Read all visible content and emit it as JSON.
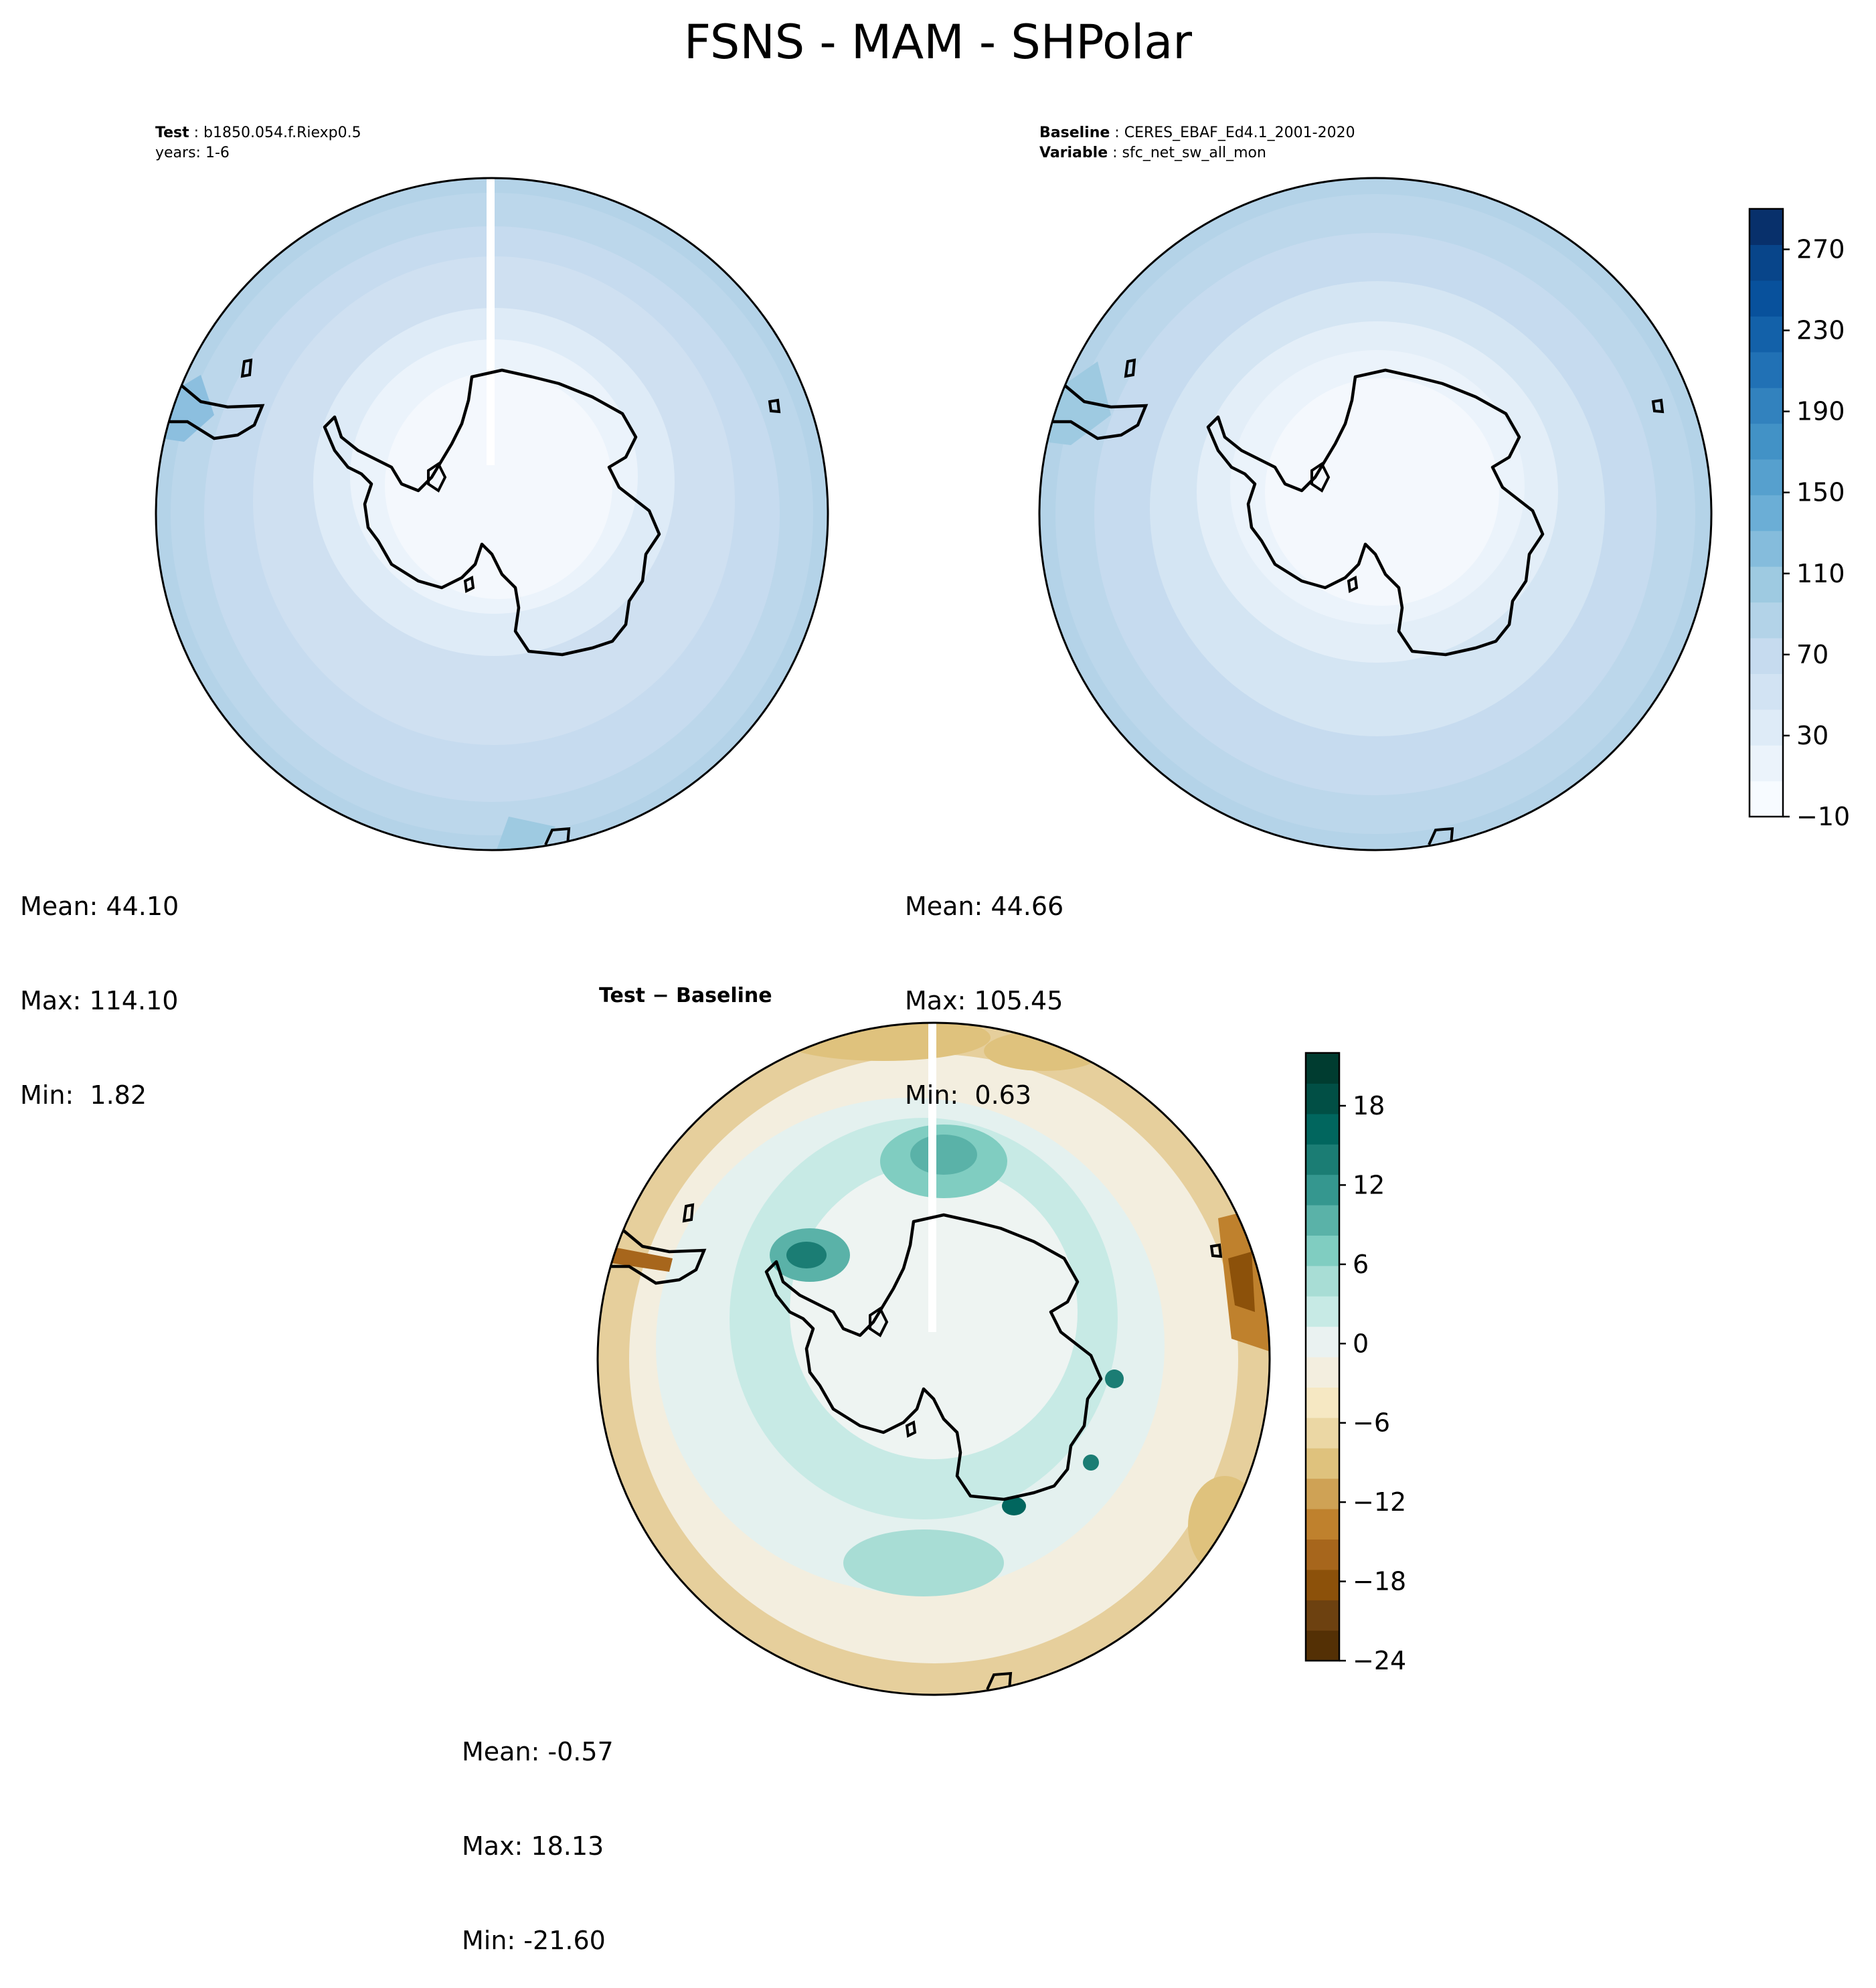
{
  "title": "FSNS - MAM - SHPolar",
  "panels": {
    "test": {
      "label_key": "Test",
      "label_value": "b1850.054.f.Riexp0.5",
      "years": "years: 1-6",
      "mean": "Mean: 44.10",
      "max": "Max: 114.10",
      "min": "Min:  1.82"
    },
    "baseline": {
      "label_key": "Baseline",
      "label_value": "CERES_EBAF_Ed4.1_2001-2020",
      "var_key": "Variable",
      "var_value": "sfc_net_sw_all_mon",
      "mean": "Mean: 44.66",
      "max": "Max: 105.45",
      "min": "Min:  0.63"
    },
    "diff": {
      "title": "Test − Baseline",
      "mean": "Mean: -0.57",
      "max": "Max: 18.13",
      "min": "Min: -21.60"
    }
  },
  "colorbar_main": {
    "min": -10,
    "max": 290,
    "ticks": [
      -10,
      30,
      70,
      110,
      150,
      190,
      230,
      270
    ],
    "tick_labels": [
      "−10",
      "30",
      "70",
      "110",
      "150",
      "190",
      "230",
      "270"
    ],
    "colors": [
      "#f7fbff",
      "#ebf3fb",
      "#deebf7",
      "#d2e3f3",
      "#c6dbef",
      "#b3d3e8",
      "#9ecae1",
      "#85bcdc",
      "#6baed6",
      "#56a0ce",
      "#4292c6",
      "#3282be",
      "#2171b5",
      "#1361a9",
      "#08519c",
      "#08458a",
      "#08306b"
    ]
  },
  "colorbar_diff": {
    "min": -24,
    "max": 22,
    "ticks": [
      -24,
      -18,
      -12,
      -6,
      0,
      6,
      12,
      18
    ],
    "tick_labels": [
      "−24",
      "−18",
      "−12",
      "−6",
      "0",
      "6",
      "12",
      "18"
    ],
    "colors": [
      "#543005",
      "#6d4110",
      "#8c510a",
      "#a7661c",
      "#bf812d",
      "#cfa255",
      "#dfc27d",
      "#ebd7a4",
      "#f6e8c3",
      "#f3eedf",
      "#eaf2f1",
      "#c7eae5",
      "#a8ddd5",
      "#80cdc1",
      "#5ab2a8",
      "#35978f",
      "#1b7d74",
      "#01665e",
      "#014f45",
      "#003c30"
    ]
  },
  "chart_data": [
    {
      "type": "contour_map",
      "panel": "test",
      "projection": "south polar stereographic",
      "variable": "FSNS",
      "season": "MAM",
      "stats": {
        "mean": 44.1,
        "max": 114.1,
        "min": 1.82
      }
    },
    {
      "type": "contour_map",
      "panel": "baseline",
      "projection": "south polar stereographic",
      "variable": "sfc_net_sw_all_mon",
      "stats": {
        "mean": 44.66,
        "max": 105.45,
        "min": 0.63
      },
      "colorbar": {
        "range": [
          -10,
          290
        ],
        "ticks": [
          -10,
          30,
          70,
          110,
          150,
          190,
          230,
          270
        ]
      }
    },
    {
      "type": "contour_map",
      "panel": "difference",
      "stats": {
        "mean": -0.57,
        "max": 18.13,
        "min": -21.6
      },
      "colorbar": {
        "range": [
          -24,
          22
        ],
        "ticks": [
          -24,
          -18,
          -12,
          -6,
          0,
          6,
          12,
          18
        ]
      }
    }
  ]
}
